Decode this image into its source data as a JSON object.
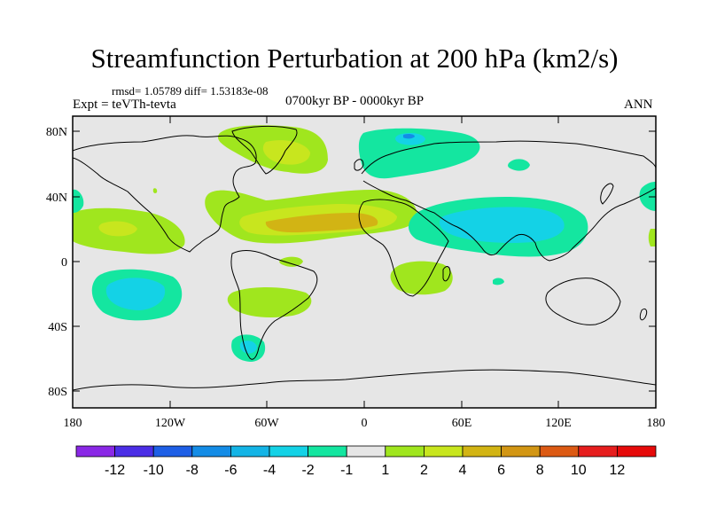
{
  "title": "Streamfunction Perturbation at 200 hPa (km2/s)",
  "stats_line": "rmsd= 1.05789 diff= 1.53183e-08",
  "experiment": "Expt = teVTh-tevta",
  "period": "0700kyr BP - 0000kyr BP",
  "season": "ANN",
  "map": {
    "lat_ticks": [
      "80N",
      "40N",
      "0",
      "40S",
      "80S"
    ],
    "lon_ticks": [
      "180",
      "120W",
      "60W",
      "0",
      "60E",
      "120E",
      "180"
    ],
    "background_color": "#e6e6e6"
  },
  "colorbar": {
    "labels": [
      "-12",
      "-10",
      "-8",
      "-6",
      "-4",
      "-2",
      "-1",
      "1",
      "2",
      "4",
      "6",
      "8",
      "10",
      "12"
    ],
    "colors": [
      "#8a28e6",
      "#4b2ee6",
      "#1e5fe6",
      "#148ce6",
      "#14b4e6",
      "#14d2e6",
      "#14e6a0",
      "#e6e6e6",
      "#a0e61e",
      "#c8e61e",
      "#d2b414",
      "#d29614",
      "#dc5a14",
      "#e61e1e",
      "#e60a0a"
    ]
  }
}
